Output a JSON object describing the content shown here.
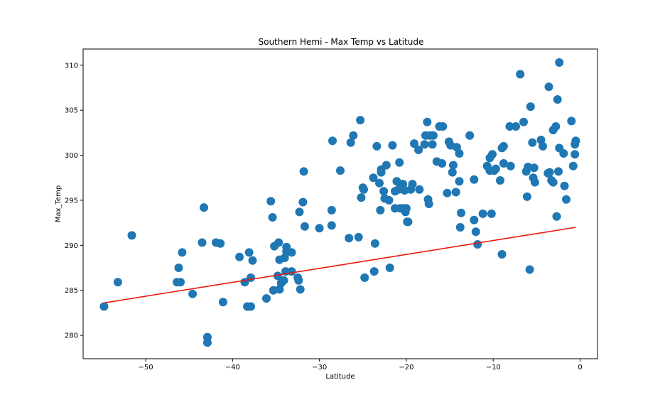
{
  "chart_data": {
    "type": "scatter",
    "title": "Southern Hemi - Max Temp vs Latitude",
    "xlabel": "Latitude",
    "ylabel": "Max_Temp",
    "xlim": [
      -57.2,
      2.0
    ],
    "ylim": [
      277.4,
      311.8
    ],
    "xticks": [
      -50,
      -40,
      -30,
      -20,
      -10,
      0
    ],
    "xtick_labels": [
      "−50",
      "−40",
      "−30",
      "−20",
      "−10",
      "0"
    ],
    "yticks": [
      280,
      285,
      290,
      295,
      300,
      305,
      310
    ],
    "ytick_labels": [
      "280",
      "285",
      "290",
      "295",
      "300",
      "305",
      "310"
    ],
    "grid": false,
    "series": [
      {
        "kind": "scatter",
        "color": "#1f77b4",
        "points": [
          [
            -54.8,
            283.2
          ],
          [
            -53.2,
            285.9
          ],
          [
            -51.6,
            291.1
          ],
          [
            -46.4,
            285.9
          ],
          [
            -46.2,
            287.5
          ],
          [
            -46.0,
            285.9
          ],
          [
            -45.8,
            289.2
          ],
          [
            -44.6,
            284.6
          ],
          [
            -43.5,
            290.3
          ],
          [
            -43.3,
            294.2
          ],
          [
            -42.9,
            279.8
          ],
          [
            -42.9,
            279.2
          ],
          [
            -41.9,
            290.3
          ],
          [
            -41.4,
            290.2
          ],
          [
            -41.1,
            283.7
          ],
          [
            -39.2,
            288.7
          ],
          [
            -38.6,
            285.9
          ],
          [
            -38.3,
            283.2
          ],
          [
            -38.1,
            289.2
          ],
          [
            -37.9,
            283.2
          ],
          [
            -37.9,
            286.4
          ],
          [
            -37.7,
            288.3
          ],
          [
            -36.1,
            284.1
          ],
          [
            -35.6,
            294.9
          ],
          [
            -35.4,
            293.1
          ],
          [
            -35.3,
            285.0
          ],
          [
            -35.2,
            289.9
          ],
          [
            -34.8,
            286.6
          ],
          [
            -34.7,
            290.3
          ],
          [
            -34.6,
            288.4
          ],
          [
            -34.6,
            285.1
          ],
          [
            -34.4,
            285.8
          ],
          [
            -34.1,
            286.1
          ],
          [
            -34.0,
            288.6
          ],
          [
            -33.9,
            287.1
          ],
          [
            -33.8,
            289.3
          ],
          [
            -33.8,
            289.8
          ],
          [
            -33.7,
            289.3
          ],
          [
            -33.2,
            289.2
          ],
          [
            -33.2,
            287.1
          ],
          [
            -32.5,
            286.4
          ],
          [
            -32.4,
            286.1
          ],
          [
            -32.3,
            293.7
          ],
          [
            -32.2,
            285.1
          ],
          [
            -31.9,
            294.8
          ],
          [
            -31.8,
            298.2
          ],
          [
            -31.7,
            292.1
          ],
          [
            -30.0,
            291.9
          ],
          [
            -28.6,
            292.2
          ],
          [
            -28.6,
            293.9
          ],
          [
            -28.5,
            301.6
          ],
          [
            -27.6,
            298.3
          ],
          [
            -26.6,
            290.8
          ],
          [
            -26.4,
            301.4
          ],
          [
            -26.1,
            302.2
          ],
          [
            -25.5,
            290.9
          ],
          [
            -25.3,
            303.9
          ],
          [
            -25.2,
            295.3
          ],
          [
            -25.0,
            296.4
          ],
          [
            -24.9,
            296.2
          ],
          [
            -24.8,
            286.4
          ],
          [
            -23.8,
            297.5
          ],
          [
            -23.7,
            287.1
          ],
          [
            -23.6,
            290.2
          ],
          [
            -23.4,
            301.0
          ],
          [
            -23.1,
            296.9
          ],
          [
            -23.0,
            293.9
          ],
          [
            -22.9,
            298.1
          ],
          [
            -22.9,
            298.4
          ],
          [
            -22.6,
            296.0
          ],
          [
            -22.5,
            295.2
          ],
          [
            -22.3,
            298.9
          ],
          [
            -22.0,
            295.0
          ],
          [
            -21.9,
            287.5
          ],
          [
            -21.6,
            301.1
          ],
          [
            -21.3,
            294.1
          ],
          [
            -21.3,
            296.0
          ],
          [
            -21.1,
            297.1
          ],
          [
            -20.9,
            296.2
          ],
          [
            -20.8,
            299.2
          ],
          [
            -20.7,
            294.1
          ],
          [
            -20.6,
            296.4
          ],
          [
            -20.4,
            296.8
          ],
          [
            -20.3,
            294.1
          ],
          [
            -20.2,
            296.1
          ],
          [
            -20.1,
            293.7
          ],
          [
            -20.0,
            294.1
          ],
          [
            -19.9,
            292.6
          ],
          [
            -19.8,
            292.6
          ],
          [
            -19.5,
            296.2
          ],
          [
            -19.3,
            296.8
          ],
          [
            -19.1,
            301.3
          ],
          [
            -18.6,
            300.6
          ],
          [
            -18.5,
            296.2
          ],
          [
            -17.9,
            301.2
          ],
          [
            -17.8,
            302.2
          ],
          [
            -17.6,
            303.7
          ],
          [
            -17.5,
            295.1
          ],
          [
            -17.4,
            294.6
          ],
          [
            -17.3,
            302.2
          ],
          [
            -17.0,
            301.2
          ],
          [
            -16.9,
            302.2
          ],
          [
            -16.5,
            299.3
          ],
          [
            -16.2,
            303.2
          ],
          [
            -15.9,
            299.1
          ],
          [
            -15.8,
            303.2
          ],
          [
            -15.3,
            295.8
          ],
          [
            -15.1,
            301.5
          ],
          [
            -14.9,
            301.1
          ],
          [
            -14.7,
            298.1
          ],
          [
            -14.6,
            298.9
          ],
          [
            -14.3,
            295.9
          ],
          [
            -14.2,
            300.9
          ],
          [
            -13.9,
            297.1
          ],
          [
            -13.9,
            300.2
          ],
          [
            -13.8,
            292.0
          ],
          [
            -13.7,
            293.6
          ],
          [
            -12.7,
            302.2
          ],
          [
            -12.2,
            297.3
          ],
          [
            -12.2,
            292.8
          ],
          [
            -12.0,
            291.5
          ],
          [
            -11.8,
            290.1
          ],
          [
            -11.2,
            293.5
          ],
          [
            -10.7,
            298.8
          ],
          [
            -10.4,
            298.3
          ],
          [
            -10.4,
            299.7
          ],
          [
            -10.2,
            293.5
          ],
          [
            -10.1,
            300.1
          ],
          [
            -9.9,
            298.3
          ],
          [
            -9.7,
            298.5
          ],
          [
            -9.2,
            297.2
          ],
          [
            -9.0,
            289.0
          ],
          [
            -9.0,
            300.8
          ],
          [
            -8.8,
            301.0
          ],
          [
            -8.8,
            299.1
          ],
          [
            -8.1,
            303.2
          ],
          [
            -8.0,
            298.8
          ],
          [
            -7.4,
            303.2
          ],
          [
            -6.9,
            309.0
          ],
          [
            -6.5,
            303.7
          ],
          [
            -6.2,
            298.2
          ],
          [
            -6.1,
            295.4
          ],
          [
            -6.0,
            298.7
          ],
          [
            -5.8,
            287.3
          ],
          [
            -5.7,
            305.4
          ],
          [
            -5.5,
            301.4
          ],
          [
            -5.4,
            297.5
          ],
          [
            -5.3,
            298.6
          ],
          [
            -5.2,
            297.0
          ],
          [
            -4.5,
            301.7
          ],
          [
            -4.3,
            301.0
          ],
          [
            -3.7,
            298.0
          ],
          [
            -3.6,
            307.6
          ],
          [
            -3.5,
            298.1
          ],
          [
            -3.3,
            297.2
          ],
          [
            -3.1,
            297.0
          ],
          [
            -3.1,
            302.8
          ],
          [
            -2.8,
            303.2
          ],
          [
            -2.7,
            293.2
          ],
          [
            -2.6,
            306.2
          ],
          [
            -2.5,
            298.2
          ],
          [
            -2.4,
            300.8
          ],
          [
            -2.4,
            310.3
          ],
          [
            -1.9,
            300.2
          ],
          [
            -1.8,
            296.6
          ],
          [
            -1.6,
            295.1
          ],
          [
            -1.0,
            303.8
          ],
          [
            -0.8,
            298.8
          ],
          [
            -0.6,
            300.1
          ],
          [
            -0.6,
            301.2
          ],
          [
            -0.5,
            301.6
          ]
        ]
      },
      {
        "kind": "line",
        "color": "#e8180c",
        "points": [
          [
            -54.8,
            283.6
          ],
          [
            -0.5,
            292.0
          ]
        ]
      }
    ]
  }
}
